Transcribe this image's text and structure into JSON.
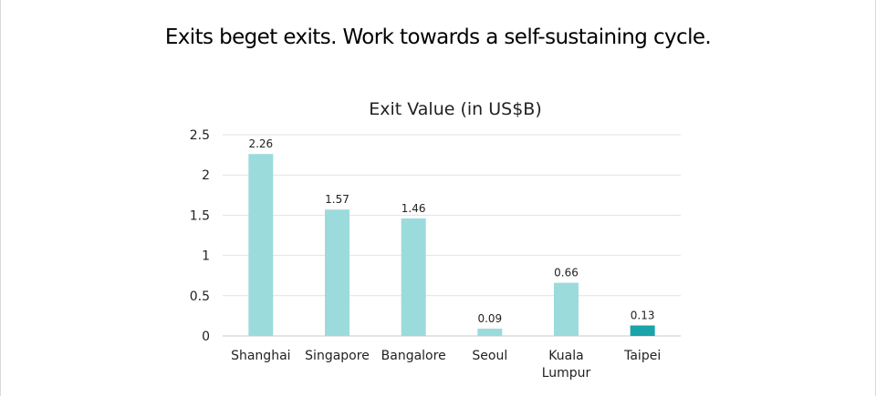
{
  "headline": "Exits beget exits. Work towards a self-sustaining cycle.",
  "colors": {
    "bar": "#9bdbdc",
    "highlight_bar": "#1aa3a8",
    "text": "#222222",
    "grid": "#e2e2e2"
  },
  "chart_data": {
    "type": "bar",
    "title": "Exit Value (in US$B)",
    "xlabel": "",
    "ylabel": "",
    "categories": [
      "Shanghai",
      "Singapore",
      "Bangalore",
      "Seoul",
      "Kuala Lumpur",
      "Taipei"
    ],
    "category_lines": [
      [
        "Shanghai"
      ],
      [
        "Singapore"
      ],
      [
        "Bangalore"
      ],
      [
        "Seoul"
      ],
      [
        "Kuala",
        "Lumpur"
      ],
      [
        "Taipei"
      ]
    ],
    "values": [
      2.26,
      1.57,
      1.46,
      0.09,
      0.66,
      0.13
    ],
    "data_labels": [
      "2.26",
      "1.57",
      "1.46",
      "0.09",
      "0.66",
      "0.13"
    ],
    "highlight_index": 5,
    "ylim": [
      0,
      2.5
    ],
    "yticks": [
      0,
      0.5,
      1,
      1.5,
      2,
      2.5
    ],
    "ytick_labels": [
      "0",
      "0.5",
      "1",
      "1.5",
      "2",
      "2.5"
    ],
    "grid": true,
    "legend": "none"
  }
}
